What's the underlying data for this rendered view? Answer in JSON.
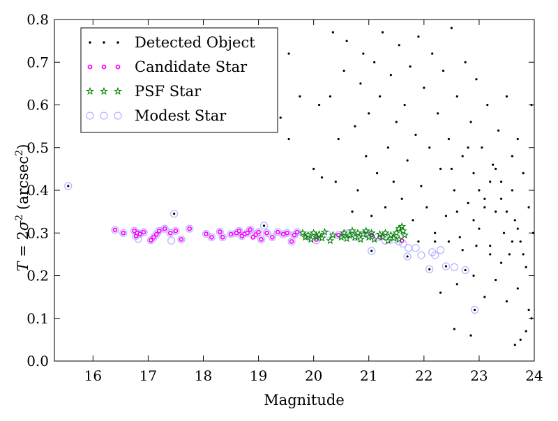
{
  "chart_data": {
    "type": "scatter",
    "xlabel": "Magnitude",
    "ylabel_parts": [
      "T",
      " = 2",
      "σ",
      "2",
      " (arcsec",
      "2",
      ")"
    ],
    "xlim": [
      15.3,
      24
    ],
    "ylim": [
      0.0,
      0.8
    ],
    "xticks": [
      "16",
      "17",
      "18",
      "19",
      "20",
      "21",
      "22",
      "23",
      "24"
    ],
    "yticks": [
      "0.0",
      "0.1",
      "0.2",
      "0.3",
      "0.4",
      "0.5",
      "0.6",
      "0.7",
      "0.8"
    ],
    "grid": false,
    "legend_position": "top-left",
    "legend": [
      {
        "label": "Detected Object",
        "marker": "dot",
        "color": "#000000"
      },
      {
        "label": "Candidate Star",
        "marker": "circle",
        "color": "#ff00ff"
      },
      {
        "label": "PSF Star",
        "marker": "star",
        "color": "#008000"
      },
      {
        "label": "Modest Star",
        "marker": "ring",
        "color": "#b3b3ff"
      }
    ],
    "series": [
      {
        "name": "Modest Star",
        "points": [
          [
            15.55,
            0.41
          ],
          [
            16.4,
            0.307
          ],
          [
            16.55,
            0.3
          ],
          [
            16.75,
            0.305
          ],
          [
            16.78,
            0.293
          ],
          [
            16.8,
            0.3
          ],
          [
            16.82,
            0.286
          ],
          [
            16.85,
            0.298
          ],
          [
            16.92,
            0.302
          ],
          [
            17.05,
            0.283
          ],
          [
            17.1,
            0.29
          ],
          [
            17.15,
            0.297
          ],
          [
            17.2,
            0.305
          ],
          [
            17.3,
            0.31
          ],
          [
            17.4,
            0.3
          ],
          [
            17.42,
            0.282
          ],
          [
            17.47,
            0.345
          ],
          [
            17.5,
            0.305
          ],
          [
            17.6,
            0.285
          ],
          [
            17.75,
            0.31
          ],
          [
            18.05,
            0.298
          ],
          [
            18.15,
            0.29
          ],
          [
            18.3,
            0.303
          ],
          [
            18.35,
            0.29
          ],
          [
            18.5,
            0.297
          ],
          [
            18.6,
            0.3
          ],
          [
            18.65,
            0.305
          ],
          [
            18.7,
            0.293
          ],
          [
            18.8,
            0.3
          ],
          [
            18.85,
            0.308
          ],
          [
            18.95,
            0.296
          ],
          [
            19.0,
            0.302
          ],
          [
            19.05,
            0.285
          ],
          [
            19.1,
            0.317
          ],
          [
            19.15,
            0.3
          ],
          [
            19.25,
            0.29
          ],
          [
            19.35,
            0.302
          ],
          [
            19.45,
            0.297
          ],
          [
            19.52,
            0.3
          ],
          [
            19.6,
            0.28
          ],
          [
            19.65,
            0.295
          ],
          [
            19.7,
            0.302
          ],
          [
            19.9,
            0.292
          ],
          [
            20.05,
            0.283
          ],
          [
            20.25,
            0.297
          ],
          [
            20.45,
            0.295
          ],
          [
            20.6,
            0.299
          ],
          [
            20.75,
            0.29
          ],
          [
            20.9,
            0.295
          ],
          [
            21.0,
            0.298
          ],
          [
            21.05,
            0.258
          ],
          [
            21.15,
            0.29
          ],
          [
            21.3,
            0.282
          ],
          [
            21.45,
            0.285
          ],
          [
            21.55,
            0.28
          ],
          [
            21.62,
            0.275
          ],
          [
            21.72,
            0.265
          ],
          [
            21.7,
            0.245
          ],
          [
            21.85,
            0.265
          ],
          [
            21.95,
            0.248
          ],
          [
            22.1,
            0.215
          ],
          [
            22.15,
            0.255
          ],
          [
            22.2,
            0.248
          ],
          [
            22.3,
            0.26
          ],
          [
            22.4,
            0.222
          ],
          [
            22.55,
            0.22
          ],
          [
            22.75,
            0.213
          ],
          [
            22.92,
            0.12
          ]
        ]
      },
      {
        "name": "Candidate Star",
        "points": [
          [
            16.4,
            0.307
          ],
          [
            16.55,
            0.3
          ],
          [
            16.75,
            0.305
          ],
          [
            16.78,
            0.293
          ],
          [
            16.8,
            0.3
          ],
          [
            16.85,
            0.298
          ],
          [
            16.92,
            0.302
          ],
          [
            17.05,
            0.283
          ],
          [
            17.1,
            0.29
          ],
          [
            17.15,
            0.297
          ],
          [
            17.2,
            0.305
          ],
          [
            17.3,
            0.31
          ],
          [
            17.4,
            0.3
          ],
          [
            17.5,
            0.305
          ],
          [
            17.6,
            0.285
          ],
          [
            17.75,
            0.31
          ],
          [
            18.05,
            0.298
          ],
          [
            18.15,
            0.29
          ],
          [
            18.3,
            0.303
          ],
          [
            18.35,
            0.29
          ],
          [
            18.5,
            0.297
          ],
          [
            18.6,
            0.3
          ],
          [
            18.65,
            0.305
          ],
          [
            18.7,
            0.293
          ],
          [
            18.75,
            0.298
          ],
          [
            18.8,
            0.3
          ],
          [
            18.85,
            0.308
          ],
          [
            18.9,
            0.29
          ],
          [
            18.95,
            0.296
          ],
          [
            19.0,
            0.302
          ],
          [
            19.05,
            0.285
          ],
          [
            19.15,
            0.3
          ],
          [
            19.25,
            0.29
          ],
          [
            19.35,
            0.302
          ],
          [
            19.45,
            0.297
          ],
          [
            19.52,
            0.3
          ],
          [
            19.6,
            0.28
          ],
          [
            19.65,
            0.295
          ],
          [
            19.7,
            0.302
          ],
          [
            20.05,
            0.285
          ],
          [
            20.45,
            0.295
          ],
          [
            21.05,
            0.295
          ],
          [
            21.2,
            0.29
          ],
          [
            21.6,
            0.282
          ]
        ]
      },
      {
        "name": "PSF Star",
        "points": [
          [
            19.8,
            0.3
          ],
          [
            19.85,
            0.29
          ],
          [
            19.9,
            0.295
          ],
          [
            19.95,
            0.285
          ],
          [
            20.0,
            0.3
          ],
          [
            20.05,
            0.29
          ],
          [
            20.1,
            0.297
          ],
          [
            20.15,
            0.288
          ],
          [
            20.2,
            0.302
          ],
          [
            20.3,
            0.282
          ],
          [
            20.35,
            0.295
          ],
          [
            20.5,
            0.29
          ],
          [
            20.55,
            0.3
          ],
          [
            20.6,
            0.287
          ],
          [
            20.65,
            0.295
          ],
          [
            20.7,
            0.305
          ],
          [
            20.75,
            0.29
          ],
          [
            20.8,
            0.3
          ],
          [
            20.85,
            0.285
          ],
          [
            20.9,
            0.297
          ],
          [
            20.95,
            0.305
          ],
          [
            21.0,
            0.29
          ],
          [
            21.05,
            0.3
          ],
          [
            21.1,
            0.285
          ],
          [
            21.2,
            0.297
          ],
          [
            21.25,
            0.29
          ],
          [
            21.3,
            0.3
          ],
          [
            21.35,
            0.282
          ],
          [
            21.4,
            0.295
          ],
          [
            21.45,
            0.288
          ],
          [
            21.5,
            0.3
          ],
          [
            21.55,
            0.31
          ],
          [
            21.6,
            0.315
          ],
          [
            21.62,
            0.305
          ],
          [
            21.65,
            0.295
          ],
          [
            21.55,
            0.285
          ]
        ]
      },
      {
        "name": "Detected Object",
        "points": [
          [
            15.55,
            0.41
          ],
          [
            17.47,
            0.345
          ],
          [
            19.1,
            0.317
          ],
          [
            21.05,
            0.258
          ],
          [
            21.7,
            0.245
          ],
          [
            22.1,
            0.215
          ],
          [
            22.4,
            0.222
          ],
          [
            22.75,
            0.213
          ],
          [
            22.92,
            0.12
          ],
          [
            22.55,
            0.075
          ],
          [
            22.85,
            0.06
          ],
          [
            23.65,
            0.038
          ],
          [
            23.95,
            0.1
          ],
          [
            23.85,
            0.07
          ],
          [
            23.75,
            0.05
          ],
          [
            19.3,
            0.76
          ],
          [
            19.55,
            0.72
          ],
          [
            19.4,
            0.57
          ],
          [
            19.55,
            0.52
          ],
          [
            19.75,
            0.62
          ],
          [
            20.0,
            0.45
          ],
          [
            20.15,
            0.43
          ],
          [
            20.1,
            0.6
          ],
          [
            20.3,
            0.62
          ],
          [
            20.35,
            0.77
          ],
          [
            20.4,
            0.42
          ],
          [
            20.45,
            0.52
          ],
          [
            20.55,
            0.68
          ],
          [
            20.6,
            0.75
          ],
          [
            20.7,
            0.35
          ],
          [
            20.75,
            0.55
          ],
          [
            20.8,
            0.4
          ],
          [
            20.85,
            0.65
          ],
          [
            20.9,
            0.72
          ],
          [
            20.95,
            0.48
          ],
          [
            21.0,
            0.58
          ],
          [
            21.05,
            0.34
          ],
          [
            21.1,
            0.7
          ],
          [
            21.15,
            0.44
          ],
          [
            21.2,
            0.62
          ],
          [
            21.25,
            0.77
          ],
          [
            21.3,
            0.36
          ],
          [
            21.35,
            0.5
          ],
          [
            21.4,
            0.67
          ],
          [
            21.45,
            0.42
          ],
          [
            21.5,
            0.56
          ],
          [
            21.55,
            0.74
          ],
          [
            21.6,
            0.38
          ],
          [
            21.65,
            0.6
          ],
          [
            21.7,
            0.47
          ],
          [
            21.75,
            0.69
          ],
          [
            21.8,
            0.33
          ],
          [
            21.85,
            0.53
          ],
          [
            21.9,
            0.76
          ],
          [
            21.95,
            0.41
          ],
          [
            22.0,
            0.64
          ],
          [
            22.05,
            0.36
          ],
          [
            22.1,
            0.5
          ],
          [
            22.15,
            0.72
          ],
          [
            22.2,
            0.3
          ],
          [
            22.25,
            0.58
          ],
          [
            22.3,
            0.45
          ],
          [
            22.35,
            0.68
          ],
          [
            22.4,
            0.34
          ],
          [
            22.45,
            0.52
          ],
          [
            22.5,
            0.78
          ],
          [
            22.55,
            0.4
          ],
          [
            22.6,
            0.62
          ],
          [
            22.65,
            0.29
          ],
          [
            22.7,
            0.48
          ],
          [
            22.75,
            0.7
          ],
          [
            22.8,
            0.37
          ],
          [
            22.85,
            0.56
          ],
          [
            22.9,
            0.44
          ],
          [
            22.95,
            0.66
          ],
          [
            23.0,
            0.31
          ],
          [
            23.05,
            0.5
          ],
          [
            23.1,
            0.38
          ],
          [
            23.15,
            0.6
          ],
          [
            23.2,
            0.27
          ],
          [
            23.25,
            0.46
          ],
          [
            23.3,
            0.35
          ],
          [
            23.35,
            0.54
          ],
          [
            23.4,
            0.42
          ],
          [
            23.45,
            0.3
          ],
          [
            23.5,
            0.62
          ],
          [
            23.55,
            0.25
          ],
          [
            23.6,
            0.4
          ],
          [
            23.65,
            0.33
          ],
          [
            23.7,
            0.52
          ],
          [
            23.75,
            0.28
          ],
          [
            23.8,
            0.44
          ],
          [
            23.85,
            0.22
          ],
          [
            23.9,
            0.36
          ],
          [
            23.95,
            0.6
          ],
          [
            23.98,
            0.3
          ],
          [
            22.3,
            0.16
          ],
          [
            22.6,
            0.18
          ],
          [
            22.9,
            0.2
          ],
          [
            23.1,
            0.15
          ],
          [
            23.3,
            0.19
          ],
          [
            23.5,
            0.14
          ],
          [
            23.7,
            0.17
          ],
          [
            23.9,
            0.12
          ],
          [
            23.8,
            0.25
          ],
          [
            23.6,
            0.28
          ],
          [
            23.4,
            0.23
          ],
          [
            23.2,
            0.25
          ],
          [
            22.95,
            0.27
          ],
          [
            22.7,
            0.26
          ],
          [
            22.45,
            0.28
          ],
          [
            22.2,
            0.28
          ],
          [
            21.9,
            0.28
          ],
          [
            23.0,
            0.4
          ],
          [
            23.2,
            0.42
          ],
          [
            23.4,
            0.38
          ],
          [
            23.3,
            0.45
          ],
          [
            23.1,
            0.36
          ],
          [
            22.9,
            0.33
          ],
          [
            23.5,
            0.35
          ],
          [
            23.6,
            0.48
          ],
          [
            23.7,
            0.31
          ],
          [
            22.8,
            0.5
          ],
          [
            22.6,
            0.35
          ],
          [
            22.5,
            0.45
          ]
        ]
      }
    ]
  }
}
